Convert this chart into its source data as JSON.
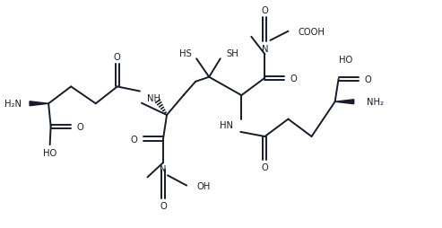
{
  "bg_color": "#ffffff",
  "line_color": "#1a1a2e",
  "line_width": 1.4,
  "figsize": [
    4.93,
    2.55
  ],
  "dpi": 100,
  "xlim": [
    0,
    9.8
  ],
  "ylim": [
    0,
    5.0
  ]
}
